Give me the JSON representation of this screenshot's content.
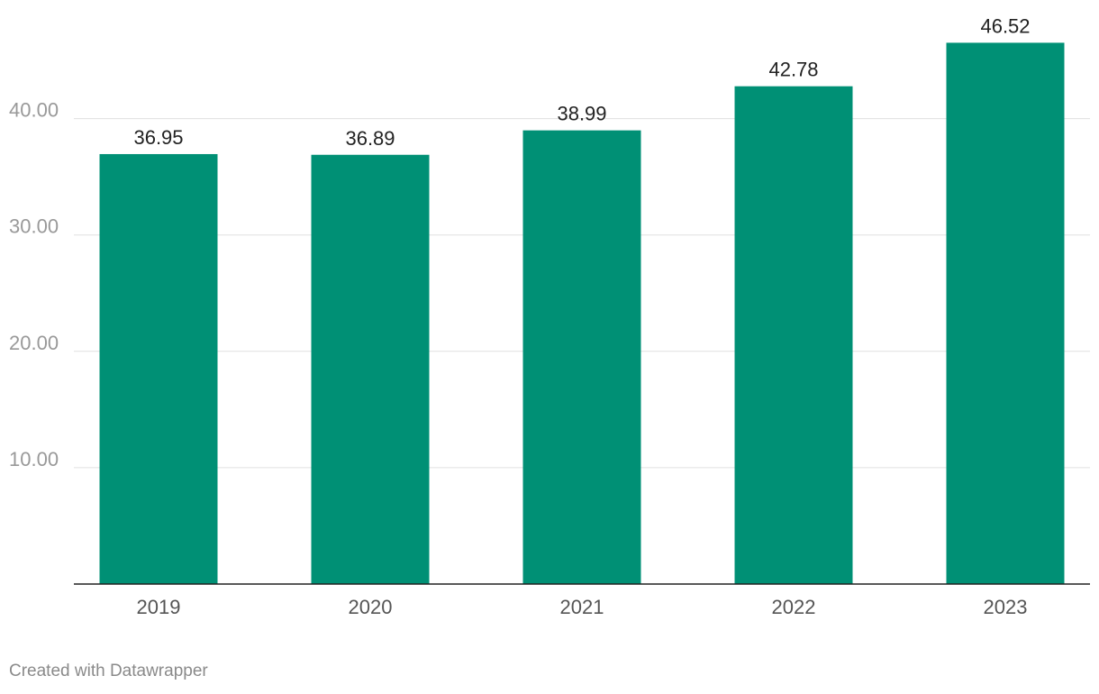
{
  "chart_data": {
    "type": "bar",
    "categories": [
      "2019",
      "2020",
      "2021",
      "2022",
      "2023"
    ],
    "values": [
      36.95,
      36.89,
      38.99,
      42.78,
      46.52
    ],
    "value_labels": [
      "36.95",
      "36.89",
      "38.99",
      "42.78",
      "46.52"
    ],
    "yticks": [
      10,
      20,
      30,
      40
    ],
    "ytick_labels": [
      "10.00",
      "20.00",
      "30.00",
      "40.00"
    ],
    "ylim": [
      0,
      50
    ],
    "grid": true,
    "bar_color": "#009075",
    "title": "",
    "xlabel": "",
    "ylabel": ""
  },
  "footer": {
    "credit": "Created with Datawrapper"
  }
}
